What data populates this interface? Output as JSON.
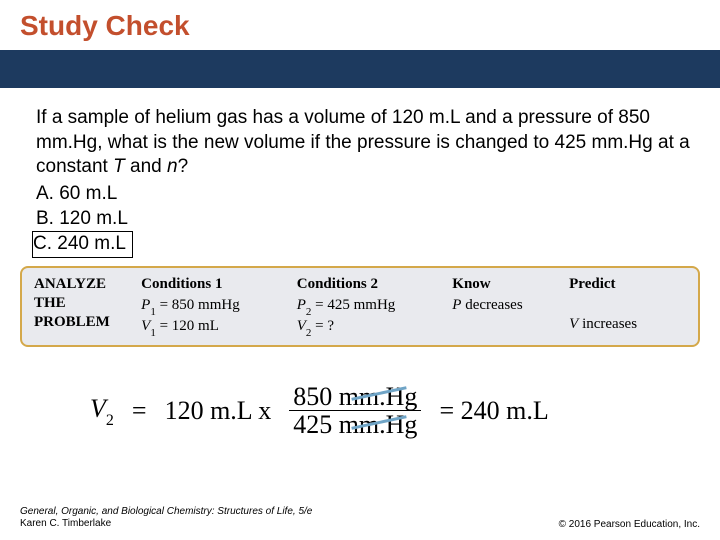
{
  "title": "Study Check",
  "title_color": "#c34f2d",
  "bar_color": "#1d3a5f",
  "question_text": "If a sample of helium gas has a volume of 120 m.L and a pressure of 850 mm.Hg, what is the new volume if the pressure is changed to 425 mm.Hg at a constant ",
  "question_tail": " and ",
  "question_var1": "T",
  "question_var2": "n",
  "question_end": "?",
  "options": {
    "a_label": "A.  60 m.L",
    "b_label": "B.  120 m.L",
    "c_label": "C.  240 m.L"
  },
  "analyze": {
    "header1": "ANALYZE",
    "header2": "THE",
    "header3": "PROBLEM",
    "cond1_head": "Conditions 1",
    "cond1_p": "P",
    "cond1_p_sub": "1",
    "cond1_p_val": " = 850 mmHg",
    "cond1_v": "V",
    "cond1_v_sub": "1",
    "cond1_v_val": " = 120 mL",
    "cond2_head": "Conditions 2",
    "cond2_p": "P",
    "cond2_p_sub": "2",
    "cond2_p_val": " = 425 mmHg",
    "cond2_v": "V",
    "cond2_v_sub": "2",
    "cond2_v_val": " = ?",
    "know_head": "Know",
    "know_p": "P",
    "know_tail": " decreases",
    "predict_head": "Predict",
    "predict_v": "V",
    "predict_tail": " increases"
  },
  "equation": {
    "lhs_var": "V",
    "lhs_sub": "2",
    "eq": "=",
    "mid": "120 m.L x",
    "num": "850 mm.Hg",
    "den": "425 mm.Hg",
    "rhs": "= 240 m.L",
    "strike_color": "#6fa4c6"
  },
  "footer": {
    "left_line1": "General, Organic, and Biological Chemistry: Structures of Life, 5/e",
    "left_line2": "Karen C. Timberlake",
    "right": "© 2016 Pearson Education, Inc."
  }
}
